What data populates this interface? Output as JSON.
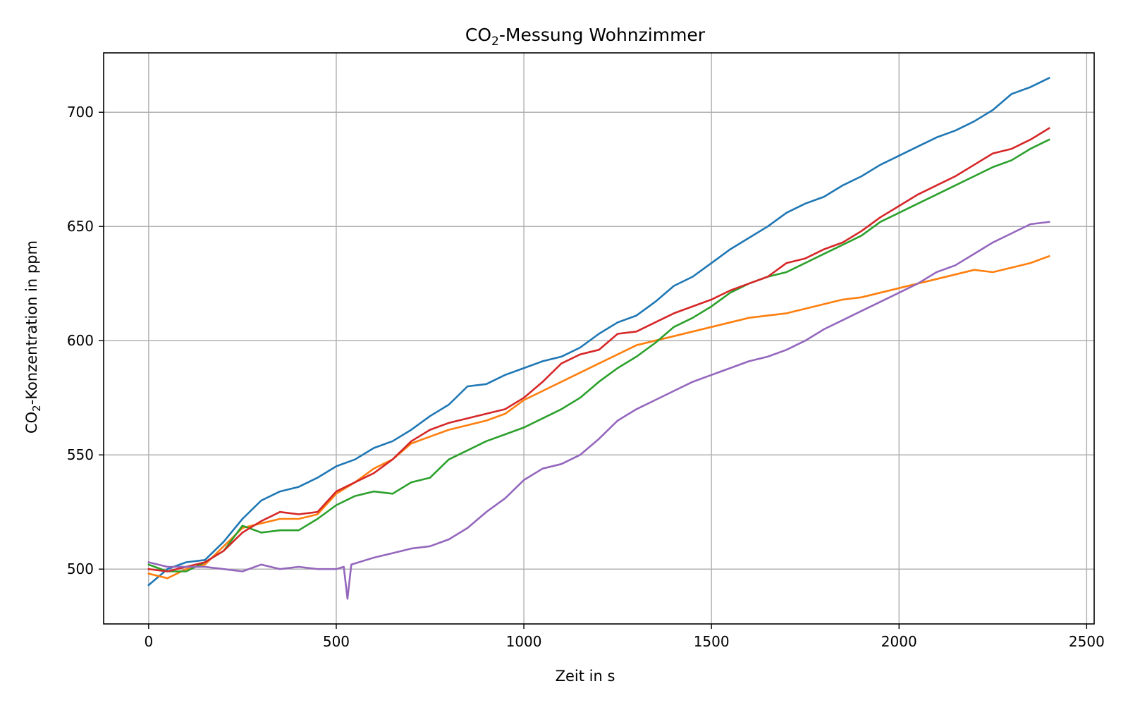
{
  "chart_data": {
    "type": "line",
    "title": {
      "main": "CO",
      "sub": "2",
      "rest": "-Messung Wohnzimmer"
    },
    "xlabel": "Zeit in s",
    "ylabel": {
      "main": "CO",
      "sub": "2",
      "rest": "-Konzentration in ppm"
    },
    "xlim": [
      -120,
      2520
    ],
    "ylim": [
      476,
      726
    ],
    "xticks": [
      0,
      500,
      1000,
      1500,
      2000,
      2500
    ],
    "yticks": [
      500,
      550,
      600,
      650,
      700
    ],
    "grid": true,
    "series": [
      {
        "color": "#1f77b4",
        "points": [
          [
            0,
            493
          ],
          [
            50,
            500
          ],
          [
            100,
            503
          ],
          [
            150,
            504
          ],
          [
            200,
            512
          ],
          [
            250,
            522
          ],
          [
            300,
            530
          ],
          [
            350,
            534
          ],
          [
            400,
            536
          ],
          [
            450,
            540
          ],
          [
            500,
            545
          ],
          [
            550,
            548
          ],
          [
            600,
            553
          ],
          [
            650,
            556
          ],
          [
            700,
            561
          ],
          [
            750,
            567
          ],
          [
            800,
            572
          ],
          [
            850,
            580
          ],
          [
            900,
            581
          ],
          [
            950,
            585
          ],
          [
            1000,
            588
          ],
          [
            1050,
            591
          ],
          [
            1100,
            593
          ],
          [
            1150,
            597
          ],
          [
            1200,
            603
          ],
          [
            1250,
            608
          ],
          [
            1300,
            611
          ],
          [
            1350,
            617
          ],
          [
            1400,
            624
          ],
          [
            1450,
            628
          ],
          [
            1500,
            634
          ],
          [
            1550,
            640
          ],
          [
            1600,
            645
          ],
          [
            1650,
            650
          ],
          [
            1700,
            656
          ],
          [
            1750,
            660
          ],
          [
            1800,
            663
          ],
          [
            1850,
            668
          ],
          [
            1900,
            672
          ],
          [
            1950,
            677
          ],
          [
            2000,
            681
          ],
          [
            2050,
            685
          ],
          [
            2100,
            689
          ],
          [
            2150,
            692
          ],
          [
            2200,
            696
          ],
          [
            2250,
            701
          ],
          [
            2300,
            708
          ],
          [
            2350,
            711
          ],
          [
            2400,
            715
          ]
        ]
      },
      {
        "color": "#ff7f0e",
        "points": [
          [
            0,
            498
          ],
          [
            50,
            496
          ],
          [
            100,
            500
          ],
          [
            150,
            502
          ],
          [
            200,
            510
          ],
          [
            250,
            518
          ],
          [
            300,
            520
          ],
          [
            350,
            522
          ],
          [
            400,
            522
          ],
          [
            450,
            524
          ],
          [
            500,
            533
          ],
          [
            550,
            538
          ],
          [
            600,
            544
          ],
          [
            650,
            548
          ],
          [
            700,
            555
          ],
          [
            750,
            558
          ],
          [
            800,
            561
          ],
          [
            850,
            563
          ],
          [
            900,
            565
          ],
          [
            950,
            568
          ],
          [
            1000,
            574
          ],
          [
            1050,
            578
          ],
          [
            1100,
            582
          ],
          [
            1150,
            586
          ],
          [
            1200,
            590
          ],
          [
            1250,
            594
          ],
          [
            1300,
            598
          ],
          [
            1350,
            600
          ],
          [
            1400,
            602
          ],
          [
            1450,
            604
          ],
          [
            1500,
            606
          ],
          [
            1550,
            608
          ],
          [
            1600,
            610
          ],
          [
            1650,
            611
          ],
          [
            1700,
            612
          ],
          [
            1750,
            614
          ],
          [
            1800,
            616
          ],
          [
            1850,
            618
          ],
          [
            1900,
            619
          ],
          [
            1950,
            621
          ],
          [
            2000,
            623
          ],
          [
            2050,
            625
          ],
          [
            2100,
            627
          ],
          [
            2150,
            629
          ],
          [
            2200,
            631
          ],
          [
            2250,
            630
          ],
          [
            2300,
            632
          ],
          [
            2350,
            634
          ],
          [
            2400,
            637
          ]
        ]
      },
      {
        "color": "#2ca02c",
        "points": [
          [
            0,
            502
          ],
          [
            50,
            499
          ],
          [
            100,
            499
          ],
          [
            150,
            503
          ],
          [
            200,
            508
          ],
          [
            250,
            519
          ],
          [
            300,
            516
          ],
          [
            350,
            517
          ],
          [
            400,
            517
          ],
          [
            450,
            522
          ],
          [
            500,
            528
          ],
          [
            550,
            532
          ],
          [
            600,
            534
          ],
          [
            650,
            533
          ],
          [
            700,
            538
          ],
          [
            750,
            540
          ],
          [
            800,
            548
          ],
          [
            850,
            552
          ],
          [
            900,
            556
          ],
          [
            950,
            559
          ],
          [
            1000,
            562
          ],
          [
            1050,
            566
          ],
          [
            1100,
            570
          ],
          [
            1150,
            575
          ],
          [
            1200,
            582
          ],
          [
            1250,
            588
          ],
          [
            1300,
            593
          ],
          [
            1350,
            599
          ],
          [
            1400,
            606
          ],
          [
            1450,
            610
          ],
          [
            1500,
            615
          ],
          [
            1550,
            621
          ],
          [
            1600,
            625
          ],
          [
            1650,
            628
          ],
          [
            1700,
            630
          ],
          [
            1750,
            634
          ],
          [
            1800,
            638
          ],
          [
            1850,
            642
          ],
          [
            1900,
            646
          ],
          [
            1950,
            652
          ],
          [
            2000,
            656
          ],
          [
            2050,
            660
          ],
          [
            2100,
            664
          ],
          [
            2150,
            668
          ],
          [
            2200,
            672
          ],
          [
            2250,
            676
          ],
          [
            2300,
            679
          ],
          [
            2350,
            684
          ],
          [
            2400,
            688
          ]
        ]
      },
      {
        "color": "#d62728",
        "points": [
          [
            0,
            500
          ],
          [
            50,
            499
          ],
          [
            100,
            501
          ],
          [
            150,
            503
          ],
          [
            200,
            508
          ],
          [
            250,
            516
          ],
          [
            300,
            521
          ],
          [
            350,
            525
          ],
          [
            400,
            524
          ],
          [
            450,
            525
          ],
          [
            500,
            534
          ],
          [
            550,
            538
          ],
          [
            600,
            542
          ],
          [
            650,
            548
          ],
          [
            700,
            556
          ],
          [
            750,
            561
          ],
          [
            800,
            564
          ],
          [
            850,
            566
          ],
          [
            900,
            568
          ],
          [
            950,
            570
          ],
          [
            1000,
            575
          ],
          [
            1050,
            582
          ],
          [
            1100,
            590
          ],
          [
            1150,
            594
          ],
          [
            1200,
            596
          ],
          [
            1250,
            603
          ],
          [
            1300,
            604
          ],
          [
            1350,
            608
          ],
          [
            1400,
            612
          ],
          [
            1450,
            615
          ],
          [
            1500,
            618
          ],
          [
            1550,
            622
          ],
          [
            1600,
            625
          ],
          [
            1650,
            628
          ],
          [
            1700,
            634
          ],
          [
            1750,
            636
          ],
          [
            1800,
            640
          ],
          [
            1850,
            643
          ],
          [
            1900,
            648
          ],
          [
            1950,
            654
          ],
          [
            2000,
            659
          ],
          [
            2050,
            664
          ],
          [
            2100,
            668
          ],
          [
            2150,
            672
          ],
          [
            2200,
            677
          ],
          [
            2250,
            682
          ],
          [
            2300,
            684
          ],
          [
            2350,
            688
          ],
          [
            2400,
            693
          ]
        ]
      },
      {
        "color": "#9467bd",
        "points": [
          [
            0,
            503
          ],
          [
            50,
            501
          ],
          [
            100,
            501
          ],
          [
            150,
            501
          ],
          [
            200,
            500
          ],
          [
            250,
            499
          ],
          [
            300,
            502
          ],
          [
            350,
            500
          ],
          [
            400,
            501
          ],
          [
            450,
            500
          ],
          [
            500,
            500
          ],
          [
            520,
            501
          ],
          [
            530,
            487
          ],
          [
            540,
            502
          ],
          [
            600,
            505
          ],
          [
            650,
            507
          ],
          [
            700,
            509
          ],
          [
            750,
            510
          ],
          [
            800,
            513
          ],
          [
            850,
            518
          ],
          [
            900,
            525
          ],
          [
            950,
            531
          ],
          [
            1000,
            539
          ],
          [
            1050,
            544
          ],
          [
            1100,
            546
          ],
          [
            1150,
            550
          ],
          [
            1200,
            557
          ],
          [
            1250,
            565
          ],
          [
            1300,
            570
          ],
          [
            1350,
            574
          ],
          [
            1400,
            578
          ],
          [
            1450,
            582
          ],
          [
            1500,
            585
          ],
          [
            1550,
            588
          ],
          [
            1600,
            591
          ],
          [
            1650,
            593
          ],
          [
            1700,
            596
          ],
          [
            1750,
            600
          ],
          [
            1800,
            605
          ],
          [
            1850,
            609
          ],
          [
            1900,
            613
          ],
          [
            1950,
            617
          ],
          [
            2000,
            621
          ],
          [
            2050,
            625
          ],
          [
            2100,
            630
          ],
          [
            2150,
            633
          ],
          [
            2200,
            638
          ],
          [
            2250,
            643
          ],
          [
            2300,
            647
          ],
          [
            2350,
            651
          ],
          [
            2400,
            652
          ]
        ]
      }
    ]
  }
}
